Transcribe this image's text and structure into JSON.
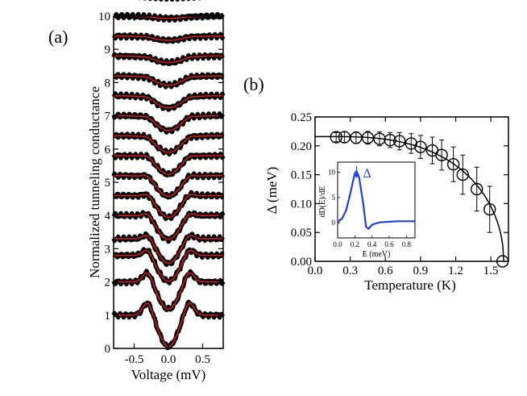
{
  "chart_data": [
    {
      "panel": "(a)",
      "type": "line",
      "xlabel": "Voltage (mV)",
      "ylabel": "Normalized tunneling conductance",
      "xlim": [
        -0.8,
        0.8
      ],
      "ylim": [
        0,
        10
      ],
      "x_ticks": [
        "-0.5",
        "0.0",
        "0.5"
      ],
      "x_tick_values": [
        -0.5,
        0.0,
        0.5
      ],
      "y_ticks": [
        "0",
        "1",
        "2",
        "3",
        "4",
        "5",
        "6",
        "7",
        "8",
        "9",
        "10"
      ],
      "y_tick_values": [
        0,
        1,
        2,
        3,
        4,
        5,
        6,
        7,
        8,
        9,
        10
      ],
      "data_color": "#000000",
      "fit_color": "#e41a1c",
      "curve_shape": "symmetric gap dip around zero voltage with coherence peaks near ±0.3 mV; curves vertically offset",
      "curves": [
        {
          "offset": 0.0,
          "depth": 0.95,
          "peak": 0.42,
          "width": 0.13
        },
        {
          "offset": 1.0,
          "depth": 0.82,
          "peak": 0.34,
          "width": 0.14
        },
        {
          "offset": 1.8,
          "depth": 0.78,
          "peak": 0.24,
          "width": 0.15
        },
        {
          "offset": 2.3,
          "depth": 0.74,
          "peak": 0.18,
          "width": 0.15
        },
        {
          "offset": 3.0,
          "depth": 0.72,
          "peak": 0.15,
          "width": 0.16
        },
        {
          "offset": 3.6,
          "depth": 0.66,
          "peak": 0.12,
          "width": 0.16
        },
        {
          "offset": 4.2,
          "depth": 0.62,
          "peak": 0.1,
          "width": 0.17
        },
        {
          "offset": 4.8,
          "depth": 0.56,
          "peak": 0.08,
          "width": 0.17
        },
        {
          "offset": 5.4,
          "depth": 0.5,
          "peak": 0.07,
          "width": 0.18
        },
        {
          "offset": 6.0,
          "depth": 0.44,
          "peak": 0.06,
          "width": 0.18
        },
        {
          "offset": 6.6,
          "depth": 0.36,
          "peak": 0.05,
          "width": 0.19
        },
        {
          "offset": 7.2,
          "depth": 0.28,
          "peak": 0.04,
          "width": 0.2
        },
        {
          "offset": 7.8,
          "depth": 0.2,
          "peak": 0.03,
          "width": 0.21
        },
        {
          "offset": 8.4,
          "depth": 0.13,
          "peak": 0.02,
          "width": 0.22
        },
        {
          "offset": 9.0,
          "depth": 0.07,
          "peak": 0.01,
          "width": 0.24
        },
        {
          "offset": 9.6,
          "depth": 0.03,
          "peak": 0.0,
          "width": 0.26
        }
      ]
    },
    {
      "panel": "(b)",
      "type": "scatter",
      "xlabel": "Temperature (K)",
      "ylabel": "Δ (meV)",
      "xlim": [
        0.0,
        1.65
      ],
      "ylim": [
        0.0,
        0.25
      ],
      "x_ticks": [
        "0.0",
        "0.3",
        "0.6",
        "0.9",
        "1.2",
        "1.5"
      ],
      "x_tick_values": [
        0.0,
        0.3,
        0.6,
        0.9,
        1.2,
        1.5
      ],
      "y_ticks": [
        "0.00",
        "0.05",
        "0.10",
        "0.15",
        "0.20",
        "0.25"
      ],
      "y_tick_values": [
        0.0,
        0.05,
        0.1,
        0.15,
        0.2,
        0.25
      ],
      "points": [
        {
          "x": 0.18,
          "y": 0.215,
          "err": 0.008
        },
        {
          "x": 0.25,
          "y": 0.215,
          "err": 0.009
        },
        {
          "x": 0.35,
          "y": 0.214,
          "err": 0.01
        },
        {
          "x": 0.45,
          "y": 0.214,
          "err": 0.011
        },
        {
          "x": 0.55,
          "y": 0.212,
          "err": 0.012
        },
        {
          "x": 0.64,
          "y": 0.21,
          "err": 0.013
        },
        {
          "x": 0.72,
          "y": 0.208,
          "err": 0.015
        },
        {
          "x": 0.82,
          "y": 0.204,
          "err": 0.017
        },
        {
          "x": 0.9,
          "y": 0.198,
          "err": 0.02
        },
        {
          "x": 1.0,
          "y": 0.192,
          "err": 0.023
        },
        {
          "x": 1.08,
          "y": 0.184,
          "err": 0.026
        },
        {
          "x": 1.18,
          "y": 0.168,
          "err": 0.03
        },
        {
          "x": 1.26,
          "y": 0.15,
          "err": 0.034
        },
        {
          "x": 1.38,
          "y": 0.125,
          "err": 0.038
        },
        {
          "x": 1.49,
          "y": 0.09,
          "err": 0.04
        },
        {
          "x": 1.6,
          "y": 0.0,
          "err": 0.0
        }
      ],
      "fit_curve": {
        "delta0": 0.216,
        "tc": 1.61
      },
      "marker": "open-circle",
      "inset": {
        "type": "line",
        "xlabel": "E (meV)",
        "ylabel": "dD(E)/dE",
        "xlim": [
          0.0,
          0.9
        ],
        "ylim": [
          -3,
          12
        ],
        "x_ticks": [
          "0.0",
          "0.2",
          "0.4",
          "0.6",
          "0.8"
        ],
        "x_tick_values": [
          0.0,
          0.2,
          0.4,
          0.6,
          0.8
        ],
        "y_ticks": [
          "0",
          "5",
          "10"
        ],
        "y_tick_values": [
          0,
          5,
          10
        ],
        "x": [
          0.0,
          0.05,
          0.1,
          0.15,
          0.2,
          0.22,
          0.25,
          0.3,
          0.33,
          0.36,
          0.4,
          0.45,
          0.5,
          0.6,
          0.7,
          0.8,
          0.9
        ],
        "y": [
          0.2,
          0.8,
          2.5,
          6.0,
          9.8,
          10.2,
          9.0,
          3.5,
          -0.8,
          -1.2,
          -0.4,
          -0.1,
          0.1,
          0.2,
          0.3,
          0.3,
          0.3
        ],
        "color": "#1f3de0",
        "annotation": "Δ",
        "annotation_x": 0.22
      }
    }
  ]
}
